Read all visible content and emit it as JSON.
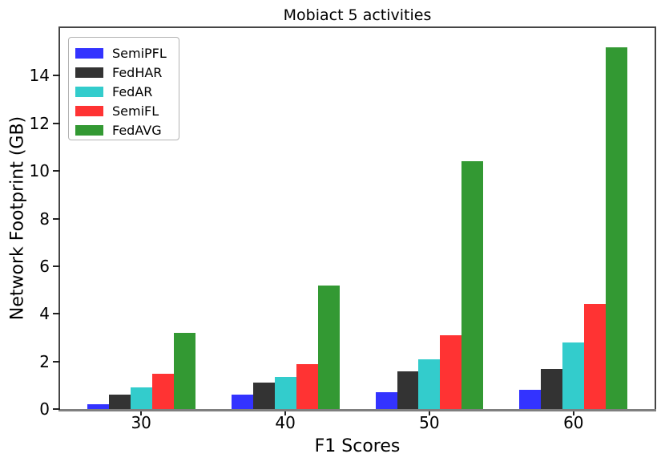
{
  "chart_data": {
    "type": "bar",
    "title": "Mobiact 5 activities",
    "xlabel": "F1 Scores",
    "ylabel": "Network Footprint (GB)",
    "categories": [
      "30",
      "40",
      "50",
      "60"
    ],
    "series": [
      {
        "name": "SemiPFL",
        "color": "#3333ff",
        "values": [
          0.2,
          0.6,
          0.7,
          0.8
        ]
      },
      {
        "name": "FedHAR",
        "color": "#333333",
        "values": [
          0.6,
          1.1,
          1.6,
          1.7
        ]
      },
      {
        "name": "FedAR",
        "color": "#33cccc",
        "values": [
          0.9,
          1.35,
          2.1,
          2.8
        ]
      },
      {
        "name": "SemiFL",
        "color": "#ff3333",
        "values": [
          1.5,
          1.9,
          3.1,
          4.4
        ]
      },
      {
        "name": "FedAVG",
        "color": "#339933",
        "values": [
          3.2,
          5.2,
          10.4,
          15.2
        ]
      }
    ],
    "ylim": [
      0,
      16
    ],
    "yticks": [
      0,
      2,
      4,
      6,
      8,
      10,
      12,
      14
    ],
    "legend_position": "upper left",
    "grid": false
  }
}
